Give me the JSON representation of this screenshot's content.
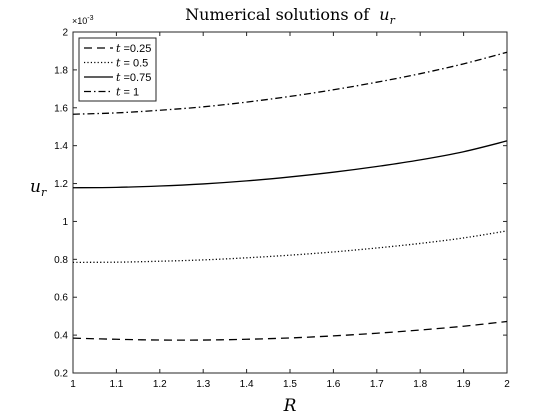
{
  "chart_data": {
    "type": "line",
    "title": "Numerical solutions of",
    "title_symbol": "u",
    "title_subscript": "r",
    "xlabel": "R",
    "ylabel_symbol": "u",
    "ylabel_subscript": "r",
    "xlim": [
      1,
      2
    ],
    "ylim": [
      0.2,
      2
    ],
    "y_multiplier": "×10",
    "y_multiplier_exp": "-3",
    "x_ticks": [
      "1",
      "1.1",
      "1.2",
      "1.3",
      "1.4",
      "1.5",
      "1.6",
      "1.7",
      "1.8",
      "1.9",
      "2"
    ],
    "y_ticks": [
      "0.2",
      "0.4",
      "0.6",
      "0.8",
      "1",
      "1.2",
      "1.4",
      "1.6",
      "1.8",
      "2"
    ],
    "grid": false,
    "legend_position": "top-left",
    "x": [
      1.0,
      1.1,
      1.2,
      1.3,
      1.4,
      1.5,
      1.6,
      1.7,
      1.8,
      1.9,
      2.0
    ],
    "series": [
      {
        "name": "t =0.25",
        "label_var": "t",
        "label_rest": " =0.25",
        "style": "dashed",
        "values": [
          0.384,
          0.378,
          0.374,
          0.374,
          0.378,
          0.385,
          0.396,
          0.41,
          0.427,
          0.447,
          0.472
        ]
      },
      {
        "name": "t = 0.5",
        "label_var": "t",
        "label_rest": " = 0.5",
        "style": "dotted",
        "values": [
          0.784,
          0.785,
          0.79,
          0.797,
          0.808,
          0.822,
          0.839,
          0.86,
          0.884,
          0.913,
          0.95
        ]
      },
      {
        "name": "t =0.75",
        "label_var": "t",
        "label_rest": " =0.75",
        "style": "solid",
        "values": [
          1.178,
          1.18,
          1.187,
          1.198,
          1.214,
          1.235,
          1.26,
          1.29,
          1.325,
          1.368,
          1.425
        ]
      },
      {
        "name": "t = 1",
        "label_var": "t",
        "label_rest": " = 1",
        "style": "dashdot",
        "values": [
          1.566,
          1.573,
          1.587,
          1.605,
          1.63,
          1.66,
          1.695,
          1.735,
          1.78,
          1.832,
          1.893
        ]
      }
    ]
  }
}
